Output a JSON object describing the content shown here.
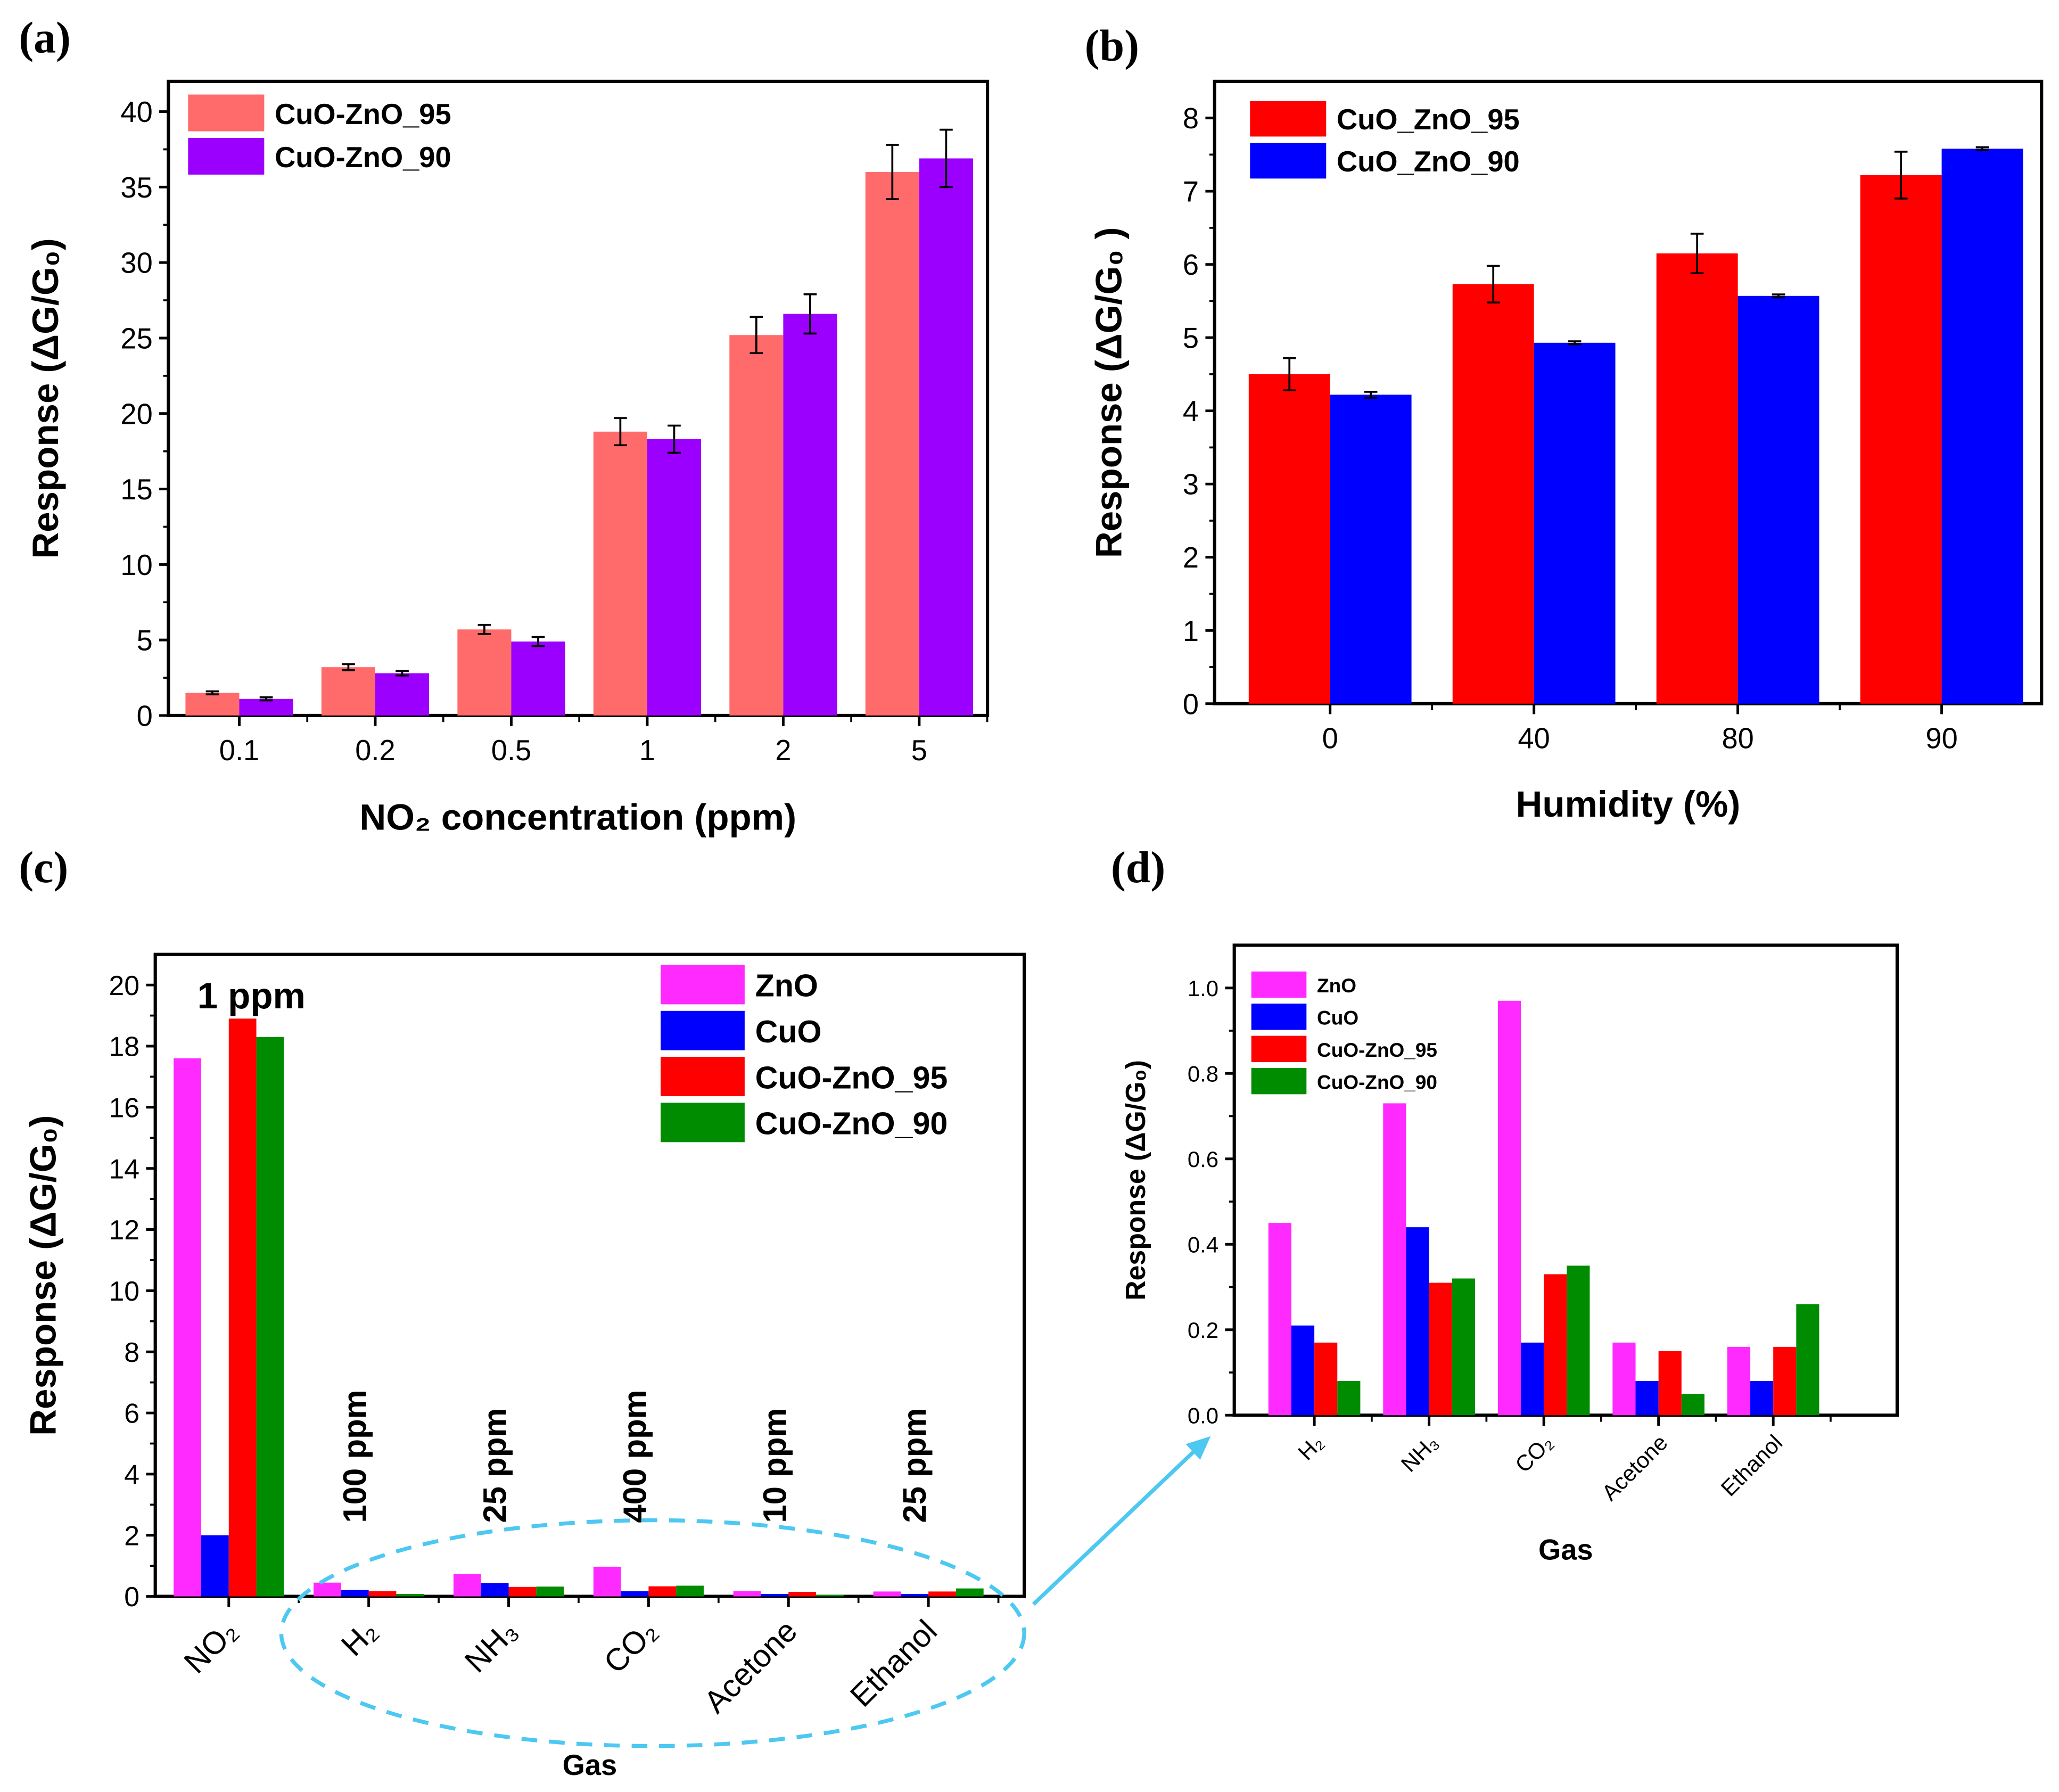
{
  "panel_labels": [
    "(a)",
    "(b)",
    "(c)",
    "(d)"
  ],
  "chart_data": [
    {
      "id": "a",
      "type": "bar",
      "title": "",
      "xlabel": "NO₂ concentration (ppm)",
      "ylabel": "Response (ΔG/G₀)",
      "categories": [
        "0.1",
        "0.2",
        "0.5",
        "1",
        "2",
        "5"
      ],
      "ylim": [
        0,
        42
      ],
      "yticks": [
        0,
        5,
        10,
        15,
        20,
        25,
        30,
        35,
        40
      ],
      "legend": "top-left",
      "series": [
        {
          "name": "CuO-ZnO_95",
          "color": "#ff6b6b",
          "values": [
            1.5,
            3.2,
            5.7,
            18.8,
            25.2,
            36.0
          ],
          "errors": [
            0.1,
            0.2,
            0.3,
            0.9,
            1.2,
            1.8
          ]
        },
        {
          "name": "CuO-ZnO_90",
          "color": "#9b00ff",
          "values": [
            1.1,
            2.8,
            4.9,
            18.3,
            26.6,
            36.9
          ],
          "errors": [
            0.1,
            0.15,
            0.3,
            0.9,
            1.3,
            1.9
          ]
        }
      ]
    },
    {
      "id": "b",
      "type": "bar",
      "title": "",
      "xlabel": "Humidity (%)",
      "ylabel": "Response (ΔG/G₀ )",
      "categories": [
        "0",
        "40",
        "80",
        "90"
      ],
      "ylim": [
        0,
        8.5
      ],
      "yticks": [
        0,
        1,
        2,
        3,
        4,
        5,
        6,
        7,
        8
      ],
      "legend": "top-left",
      "series": [
        {
          "name": "CuO_ZnO_95",
          "color": "#ff0000",
          "values": [
            4.5,
            5.73,
            6.15,
            7.22
          ],
          "errors": [
            0.22,
            0.25,
            0.27,
            0.32
          ]
        },
        {
          "name": "CuO_ZnO_90",
          "color": "#0000ff",
          "values": [
            4.22,
            4.93,
            5.57,
            7.58
          ],
          "errors": [
            0.04,
            0.02,
            0.02,
            0.02
          ]
        }
      ]
    },
    {
      "id": "c",
      "type": "bar",
      "title": "",
      "xlabel": "Gas",
      "ylabel": "Response (ΔG/G₀)",
      "categories": [
        "NO₂",
        "H₂",
        "NH₃",
        "CO₂",
        "Acetone",
        "Ethanol"
      ],
      "concentration_labels": [
        "1 ppm",
        "100 ppm",
        "25 ppm",
        "400 ppm",
        "10 ppm",
        "25 ppm"
      ],
      "ylim": [
        0,
        21
      ],
      "yticks": [
        0,
        2,
        4,
        6,
        8,
        10,
        12,
        14,
        16,
        18,
        20
      ],
      "legend": "top-right",
      "series": [
        {
          "name": "ZnO",
          "color": "#ff2aff",
          "values": [
            17.6,
            0.45,
            0.73,
            0.97,
            0.17,
            0.16
          ]
        },
        {
          "name": "CuO",
          "color": "#0000ff",
          "values": [
            2.0,
            0.21,
            0.44,
            0.17,
            0.08,
            0.08
          ]
        },
        {
          "name": "CuO-ZnO_95",
          "color": "#ff0000",
          "values": [
            18.9,
            0.17,
            0.31,
            0.33,
            0.15,
            0.16
          ]
        },
        {
          "name": "CuO-ZnO_90",
          "color": "#008c00",
          "values": [
            18.3,
            0.08,
            0.32,
            0.35,
            0.05,
            0.26
          ]
        }
      ]
    },
    {
      "id": "d",
      "type": "bar",
      "title": "",
      "xlabel": "Gas",
      "ylabel": "Response (ΔG/G₀)",
      "categories": [
        "H₂",
        "NH₃",
        "CO₂",
        "Acetone",
        "Ethanol"
      ],
      "ylim": [
        0,
        1.1
      ],
      "yticks": [
        "0.0",
        "0.2",
        "0.4",
        "0.6",
        "0.8",
        "1.0"
      ],
      "legend": "top-left",
      "series": [
        {
          "name": "ZnO",
          "color": "#ff2aff",
          "values": [
            0.45,
            0.73,
            0.97,
            0.17,
            0.16
          ]
        },
        {
          "name": "CuO",
          "color": "#0000ff",
          "values": [
            0.21,
            0.44,
            0.17,
            0.08,
            0.08
          ]
        },
        {
          "name": "CuO-ZnO_95",
          "color": "#ff0000",
          "values": [
            0.17,
            0.31,
            0.33,
            0.15,
            0.16
          ]
        },
        {
          "name": "CuO-ZnO_90",
          "color": "#008c00",
          "values": [
            0.08,
            0.32,
            0.35,
            0.05,
            0.26
          ]
        }
      ]
    }
  ],
  "annotation_color": "#4dc8f0"
}
